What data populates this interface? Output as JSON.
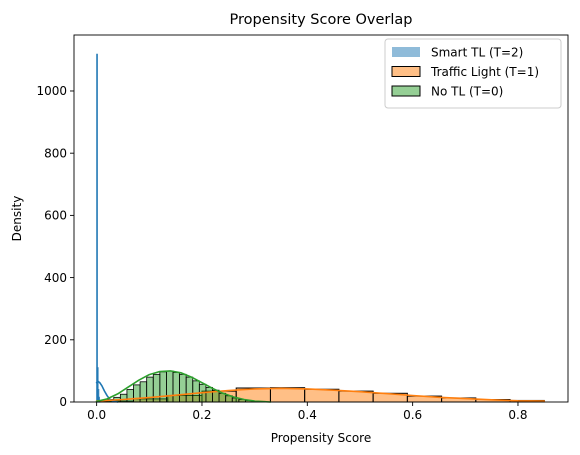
{
  "chart_data": {
    "type": "histogram",
    "title": "Propensity Score Overlap",
    "xlabel": "Propensity Score",
    "ylabel": "Density",
    "xlim": [
      -0.043,
      0.895
    ],
    "ylim": [
      0,
      1180
    ],
    "xticks": [
      0.0,
      0.2,
      0.4,
      0.6,
      0.8
    ],
    "xtick_labels": [
      "0.0",
      "0.2",
      "0.4",
      "0.6",
      "0.8"
    ],
    "yticks": [
      0,
      200,
      400,
      600,
      800,
      1000
    ],
    "ytick_labels": [
      "0",
      "200",
      "400",
      "600",
      "800",
      "1000"
    ],
    "legend_position": "top-right",
    "legend": [
      {
        "label": "Smart TL (T=2)",
        "color": "#1f77b4",
        "alpha": 0.5,
        "edge": "none"
      },
      {
        "label": "Traffic Light (T=1)",
        "color": "#ff7f0e",
        "alpha": 0.5,
        "edge": "#000000"
      },
      {
        "label": "No TL (T=0)",
        "color": "#2ca02c",
        "alpha": 0.5,
        "edge": "#000000"
      }
    ],
    "series": [
      {
        "name": "Smart TL (T=2)",
        "color": "#1f77b4",
        "bin_edges": [
          0.0,
          0.00125,
          0.0025,
          0.00375,
          0.005,
          0.00625
        ],
        "densities": [
          1118,
          110,
          40,
          15,
          5
        ],
        "kde_x": [
          0.0,
          0.003,
          0.006,
          0.01,
          0.015,
          0.02,
          0.025,
          0.03,
          0.035,
          0.04
        ],
        "kde_y": [
          62,
          66,
          62,
          52,
          35,
          20,
          9,
          4,
          1.5,
          0
        ]
      },
      {
        "name": "Traffic Light (T=1)",
        "color": "#ff7f0e",
        "bin_edges": [
          0.005,
          0.07,
          0.135,
          0.2,
          0.265,
          0.33,
          0.395,
          0.46,
          0.525,
          0.59,
          0.655,
          0.72,
          0.785,
          0.85
        ],
        "densities": [
          3,
          10,
          21,
          35,
          45,
          46,
          41,
          35,
          28,
          19,
          13,
          8,
          5
        ],
        "kde_x": [
          0.0,
          0.05,
          0.1,
          0.15,
          0.2,
          0.25,
          0.3,
          0.35,
          0.4,
          0.45,
          0.5,
          0.55,
          0.6,
          0.65,
          0.7,
          0.75,
          0.8,
          0.85
        ],
        "kde_y": [
          3,
          8,
          14,
          22,
          30,
          37,
          42,
          44,
          42,
          38,
          33,
          27,
          21,
          15,
          11,
          7,
          4,
          3
        ]
      },
      {
        "name": "No TL (T=0)",
        "color": "#2ca02c",
        "bin_edges": [
          0.02,
          0.0325,
          0.045,
          0.0575,
          0.07,
          0.0825,
          0.095,
          0.1075,
          0.12,
          0.1325,
          0.145,
          0.1575,
          0.17,
          0.1825,
          0.195,
          0.2075,
          0.22,
          0.2325,
          0.245,
          0.2575,
          0.27,
          0.2825,
          0.295,
          0.3075,
          0.32
        ],
        "densities": [
          8,
          15,
          25,
          40,
          55,
          65,
          80,
          89,
          97,
          100,
          95,
          89,
          80,
          68,
          57,
          47,
          38,
          28,
          20,
          13,
          8,
          5,
          3,
          2
        ],
        "kde_x": [
          0.0,
          0.02,
          0.04,
          0.06,
          0.08,
          0.1,
          0.12,
          0.14,
          0.16,
          0.18,
          0.2,
          0.22,
          0.24,
          0.26,
          0.28,
          0.3,
          0.33
        ],
        "kde_y": [
          2,
          10,
          26,
          48,
          70,
          88,
          98,
          100,
          94,
          80,
          62,
          44,
          28,
          16,
          8,
          3,
          0
        ]
      }
    ]
  }
}
